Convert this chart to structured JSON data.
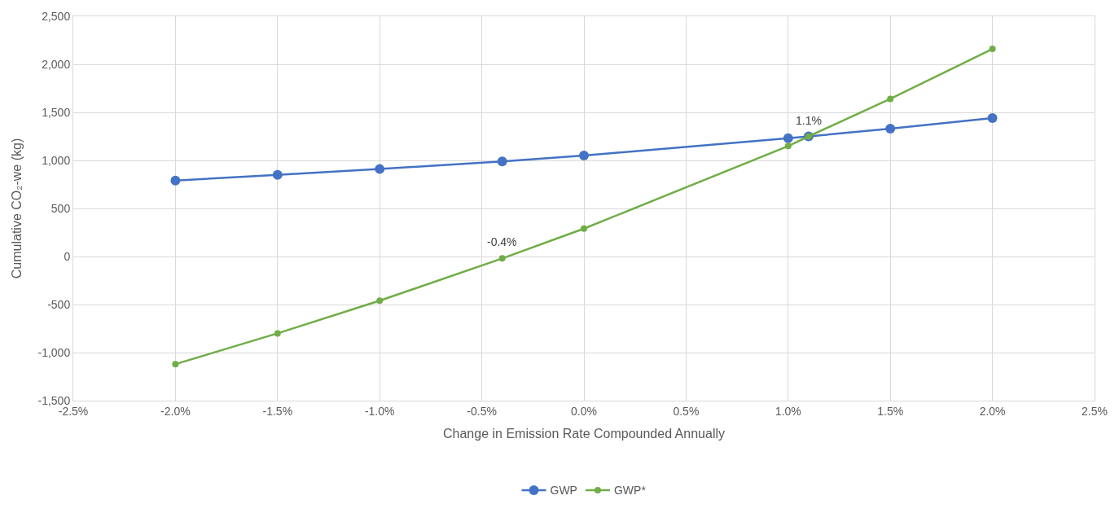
{
  "chart_data": {
    "type": "line",
    "xlabel": "Change in Emission Rate Compounded Annually",
    "ylabel": "Cumulative CO₂-we (kg)",
    "x": [
      -2.0,
      -1.5,
      -1.0,
      -0.4,
      0.0,
      1.0,
      1.1,
      1.5,
      2.0
    ],
    "series": [
      {
        "name": "GWP",
        "color": "#4472c4",
        "values": [
          790,
          850,
          910,
          990,
          1050,
          1230,
          1250,
          1330,
          1440
        ]
      },
      {
        "name": "GWP*",
        "color": "#70ad47",
        "values": [
          -1120,
          -800,
          -460,
          -20,
          290,
          1150,
          1250,
          1640,
          2160
        ]
      }
    ],
    "annotations": [
      {
        "text": "-0.4%",
        "x": -0.4,
        "y": -20
      },
      {
        "text": "1.1%",
        "x": 1.1,
        "y": 1250
      }
    ],
    "xlim": [
      -2.5,
      2.5
    ],
    "xticks": [
      {
        "value": -2.5,
        "label": "-2.5%"
      },
      {
        "value": -2.0,
        "label": "-2.0%"
      },
      {
        "value": -1.5,
        "label": "-1.5%"
      },
      {
        "value": -1.0,
        "label": "-1.0%"
      },
      {
        "value": -0.5,
        "label": "-0.5%"
      },
      {
        "value": 0.0,
        "label": "0.0%"
      },
      {
        "value": 0.5,
        "label": "0.5%"
      },
      {
        "value": 1.0,
        "label": "1.0%"
      },
      {
        "value": 1.5,
        "label": "1.5%"
      },
      {
        "value": 2.0,
        "label": "2.0%"
      },
      {
        "value": 2.5,
        "label": "2.5%"
      }
    ],
    "ylim": [
      -1500,
      2500
    ],
    "yticks": [
      {
        "value": -1500,
        "label": "-1,500"
      },
      {
        "value": -1000,
        "label": "-1,000"
      },
      {
        "value": -500,
        "label": "-500"
      },
      0,
      500,
      {
        "value": 1000,
        "label": "1,000"
      },
      {
        "value": 1500,
        "label": "1,500"
      },
      {
        "value": 2000,
        "label": "2,000"
      },
      {
        "value": 2500,
        "label": "2,500"
      }
    ],
    "grid": true,
    "legend": "bottom",
    "marker": "circle",
    "line_style": "solid"
  }
}
